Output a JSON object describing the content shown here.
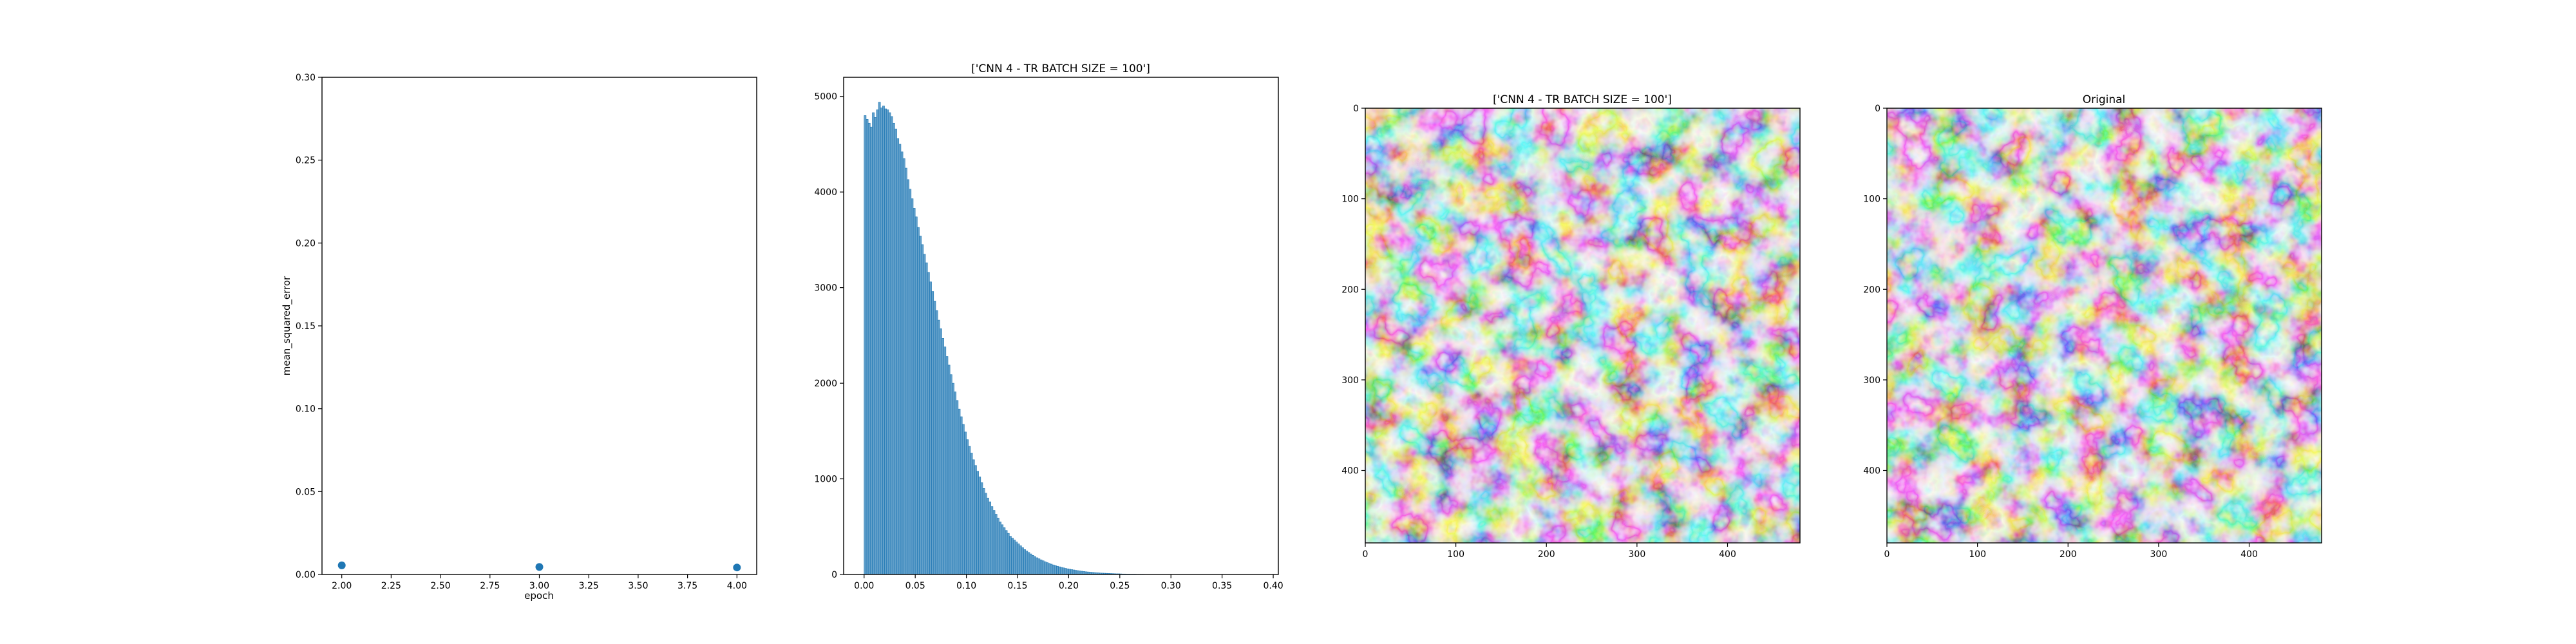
{
  "chart_data": [
    {
      "type": "scatter",
      "title": "",
      "xlabel": "epoch",
      "ylabel": "mean_squared_error",
      "xlim": [
        1.9,
        4.1
      ],
      "ylim": [
        0,
        0.3
      ],
      "xticks": [
        "2.00",
        "2.25",
        "2.50",
        "2.75",
        "3.00",
        "3.25",
        "3.50",
        "3.75",
        "4.00"
      ],
      "yticks": [
        "0.00",
        "0.05",
        "0.10",
        "0.15",
        "0.20",
        "0.25",
        "0.30"
      ],
      "x": [
        2,
        3,
        4
      ],
      "y": [
        0.0055,
        0.0045,
        0.0042
      ],
      "color": "#1f77b4",
      "grid": false
    },
    {
      "type": "bar",
      "subtype": "histogram",
      "title": "['CNN 4 - TR BATCH SIZE = 100']",
      "xlabel": "",
      "ylabel": "",
      "xlim": [
        -0.02,
        0.405
      ],
      "ylim": [
        0,
        5200
      ],
      "xticks": [
        "0.00",
        "0.05",
        "0.10",
        "0.15",
        "0.20",
        "0.25",
        "0.30",
        "0.35",
        "0.40"
      ],
      "yticks": [
        "0",
        "1000",
        "2000",
        "3000",
        "4000",
        "5000"
      ],
      "bin_range": [
        0.0,
        0.4
      ],
      "bin_width": 0.002,
      "values": [
        4800,
        4760,
        4720,
        4680,
        4830,
        4780,
        4860,
        4940,
        4880,
        4900,
        4870,
        4860,
        4830,
        4790,
        4720,
        4660,
        4560,
        4500,
        4420,
        4350,
        4250,
        4130,
        4030,
        3930,
        3830,
        3740,
        3630,
        3540,
        3450,
        3350,
        3260,
        3160,
        3060,
        2960,
        2860,
        2760,
        2660,
        2570,
        2470,
        2380,
        2280,
        2190,
        2090,
        2000,
        1910,
        1820,
        1730,
        1650,
        1570,
        1490,
        1410,
        1340,
        1270,
        1200,
        1140,
        1080,
        1020,
        960,
        900,
        850,
        800,
        760,
        710,
        670,
        630,
        590,
        550,
        520,
        490,
        460,
        430,
        400,
        380,
        360,
        340,
        320,
        300,
        280,
        260,
        245,
        230,
        215,
        200,
        187,
        175,
        164,
        153,
        143,
        133,
        124,
        116,
        108,
        100,
        93,
        86,
        80,
        74,
        69,
        64,
        59,
        55,
        51,
        47,
        43,
        40,
        37,
        34,
        31,
        28,
        26,
        24,
        22,
        20,
        18,
        17,
        15,
        14,
        13,
        12,
        11,
        10,
        9,
        8,
        7,
        7,
        6,
        5,
        5,
        4,
        4,
        3,
        3,
        3,
        2,
        2,
        2,
        2,
        1,
        1,
        1,
        1,
        1,
        1,
        1,
        1,
        1,
        1,
        1,
        1,
        1,
        1,
        1,
        1,
        1
      ],
      "color": "#1f77b4",
      "grid": false
    },
    {
      "type": "image",
      "title": "['CNN 4 - TR BATCH SIZE = 100']",
      "xlim": [
        0,
        480
      ],
      "ylim": [
        480,
        0
      ],
      "xticks": [
        "0",
        "100",
        "200",
        "300",
        "400"
      ],
      "yticks": [
        "0",
        "100",
        "200",
        "300",
        "400"
      ],
      "colormap": "gray"
    },
    {
      "type": "image",
      "title": "Original",
      "xlim": [
        0,
        480
      ],
      "ylim": [
        480,
        0
      ],
      "xticks": [
        "0",
        "100",
        "200",
        "300",
        "400"
      ],
      "yticks": [
        "0",
        "100",
        "200",
        "300",
        "400"
      ],
      "colormap": "gray"
    }
  ]
}
